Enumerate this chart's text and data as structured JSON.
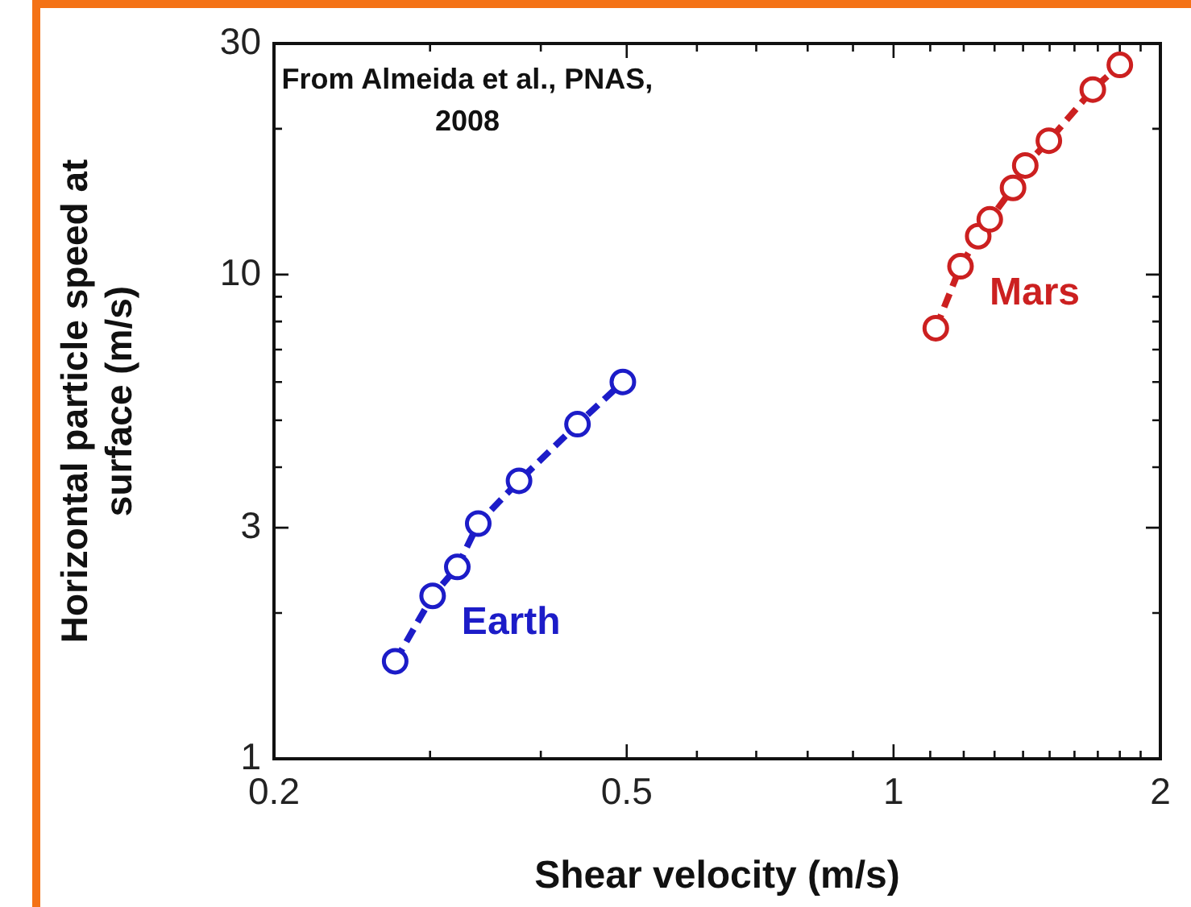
{
  "chart_data": {
    "type": "line",
    "xlabel": "Shear velocity (m/s)",
    "ylabel": "Horizontal particle speed at surface (m/s)",
    "annotations": [
      "From Almeida et al., PNAS, 2008"
    ],
    "log": "xy",
    "grid": false,
    "marker": "circle",
    "line_style": "dashed",
    "xlim": [
      0.2,
      2
    ],
    "ylim": [
      1,
      30
    ],
    "xticks": [
      0.2,
      {
        "value": 0.3,
        "label": null
      },
      {
        "value": 0.4,
        "label": null
      },
      0.5,
      {
        "value": 0.6,
        "label": null
      },
      {
        "value": 0.7,
        "label": null
      },
      {
        "value": 0.8,
        "label": null
      },
      {
        "value": 0.9,
        "label": null
      },
      1,
      {
        "value": 1.1,
        "label": null
      },
      {
        "value": 1.2,
        "label": null
      },
      {
        "value": 1.3,
        "label": null
      },
      {
        "value": 1.4,
        "label": null
      },
      {
        "value": 1.5,
        "label": null
      },
      {
        "value": 1.6,
        "label": null
      },
      {
        "value": 1.7,
        "label": null
      },
      {
        "value": 1.8,
        "label": null
      },
      {
        "value": 1.9,
        "label": null
      },
      2
    ],
    "yticks": [
      1,
      {
        "value": 2,
        "label": null
      },
      3,
      {
        "value": 4,
        "label": null
      },
      {
        "value": 5,
        "label": null
      },
      {
        "value": 6,
        "label": null
      },
      {
        "value": 7,
        "label": null
      },
      {
        "value": 8,
        "label": null
      },
      {
        "value": 9,
        "label": null
      },
      10,
      {
        "value": 20,
        "label": null
      },
      30
    ],
    "series": [
      {
        "name": "Earth",
        "color": "#1c1cc8",
        "x": [
          0.274,
          0.302,
          0.322,
          0.34,
          0.378,
          0.44,
          0.495
        ],
        "values": [
          1.59,
          2.17,
          2.49,
          3.06,
          3.75,
          4.91,
          6.0
        ]
      },
      {
        "name": "Mars",
        "color": "#cc2020",
        "x": [
          1.116,
          1.19,
          1.246,
          1.284,
          1.364,
          1.408,
          1.497,
          1.678,
          1.8
        ],
        "values": [
          7.75,
          10.4,
          12.0,
          13.0,
          15.1,
          16.8,
          18.9,
          24.1,
          27.1
        ]
      }
    ]
  }
}
